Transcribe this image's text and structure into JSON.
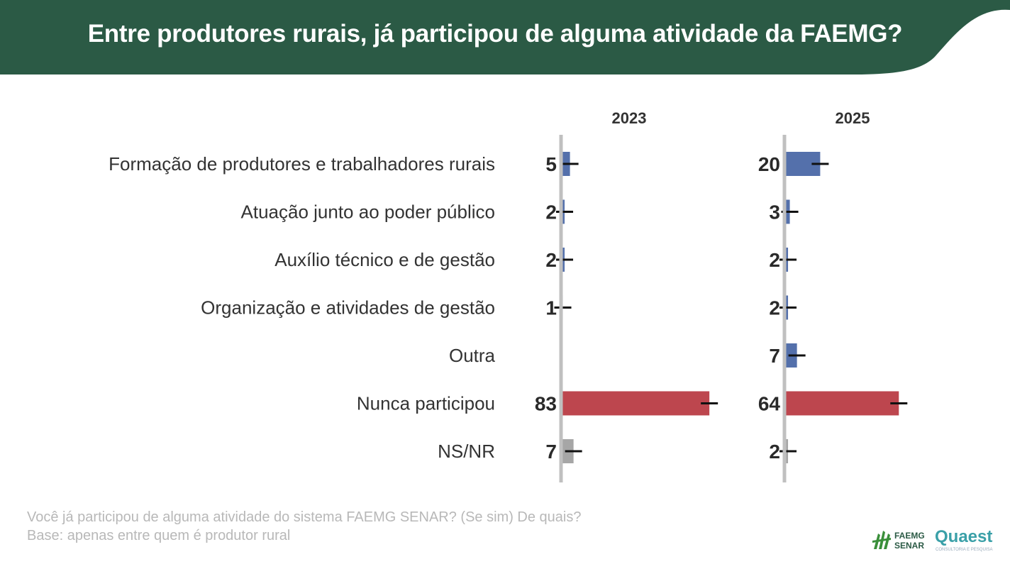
{
  "header": {
    "title": "Entre produtores rurais, já participou de alguma atividade da FAEMG?",
    "background_color": "#2b5a45"
  },
  "chart_data": {
    "type": "bar",
    "orientation": "horizontal",
    "categories": [
      "Formação de produtores e trabalhadores rurais",
      "Atuação junto ao poder público",
      "Auxílio técnico e de gestão",
      "Organização e atividades de gestão",
      "Outra",
      "Nunca participou",
      "NS/NR"
    ],
    "series": [
      {
        "name": "2023",
        "values": [
          5,
          2,
          2,
          1,
          null,
          83,
          7
        ]
      },
      {
        "name": "2025",
        "values": [
          20,
          3,
          2,
          2,
          7,
          64,
          2
        ]
      }
    ],
    "error_bars": "shown",
    "colors": {
      "default": "#5470ab",
      "never": "#bd464e",
      "nsnr": "#a6a6a6",
      "axis": "#c0c0c0",
      "error_bar": "#111111"
    }
  },
  "footnotes": {
    "question": "Você já participou de alguma atividade do sistema FAEMG SENAR? (Se sim) De quais?",
    "base": "Base: apenas entre quem é produtor rural"
  },
  "logos": {
    "faemg_line1": "FAEMG",
    "faemg_line2": "SENAR",
    "quaest_name": "Quaest",
    "quaest_tagline": "CONSULTORIA E PESQUISA"
  }
}
